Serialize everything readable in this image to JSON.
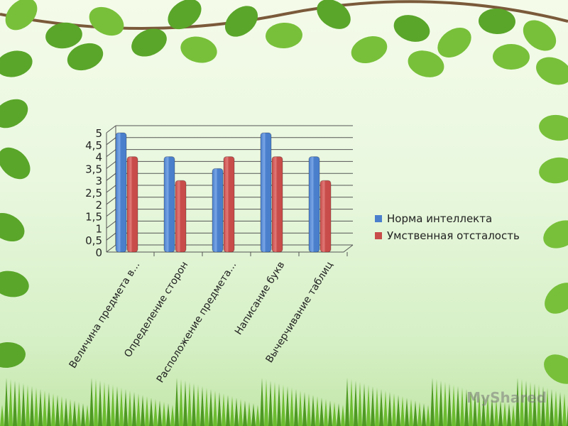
{
  "chart_data": {
    "type": "bar",
    "title": "",
    "xlabel": "",
    "ylabel": "",
    "categories": [
      "Величина предмета в...",
      "Определение сторон",
      "Расположение предмета...",
      "Написание букв",
      "Вычерчивание таблиц"
    ],
    "series": [
      {
        "name": "Норма интеллекта",
        "color": "#4a7fcc",
        "values": [
          5,
          4,
          3.5,
          5,
          4
        ]
      },
      {
        "name": "Умственная отсталость",
        "color": "#c84c4a",
        "values": [
          4,
          3,
          4,
          4,
          3
        ]
      }
    ],
    "yticks": [
      "0",
      "0,5",
      "1",
      "1,5",
      "2",
      "2,5",
      "3",
      "3,5",
      "4",
      "4,5",
      "5"
    ],
    "ylim": [
      0,
      5
    ],
    "grid": true,
    "legend": "right"
  },
  "watermark": "MyShared"
}
